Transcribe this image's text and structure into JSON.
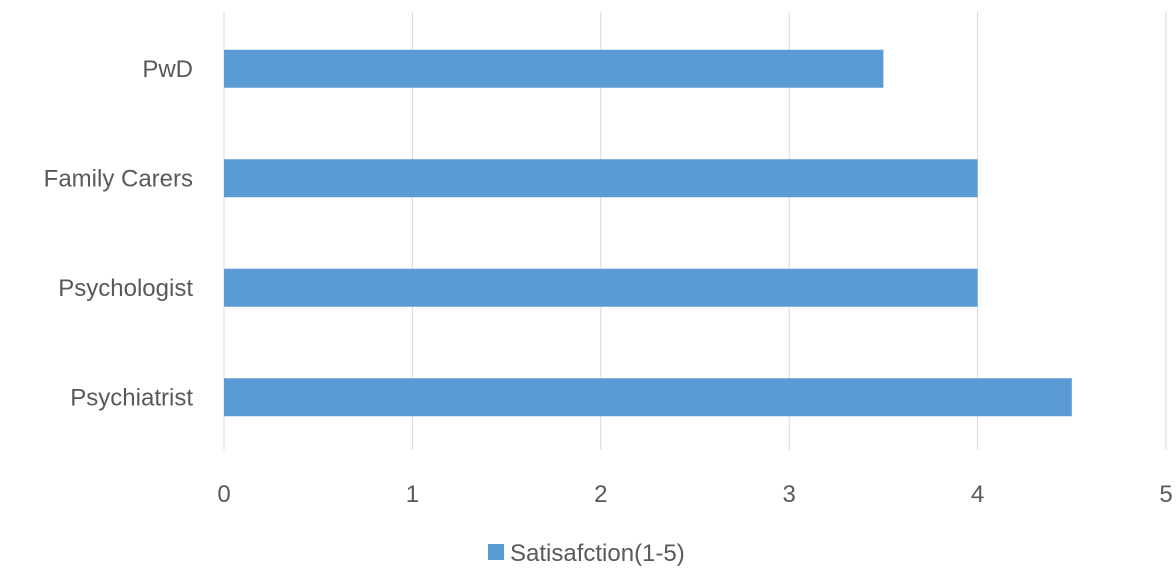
{
  "chart_data": {
    "type": "bar",
    "orientation": "horizontal",
    "categories": [
      "Psychiatrist",
      "Psychologist",
      "Family Carers",
      "PwD"
    ],
    "series": [
      {
        "name": "Satisafction(1-5)",
        "values": [
          4.5,
          4,
          4,
          3.5
        ],
        "color": "#5b9bd5"
      }
    ],
    "xlim": [
      0,
      5
    ],
    "xticks": [
      "0",
      "1",
      "2",
      "3",
      "4",
      "5"
    ],
    "grid": true,
    "legend_position": "bottom"
  }
}
